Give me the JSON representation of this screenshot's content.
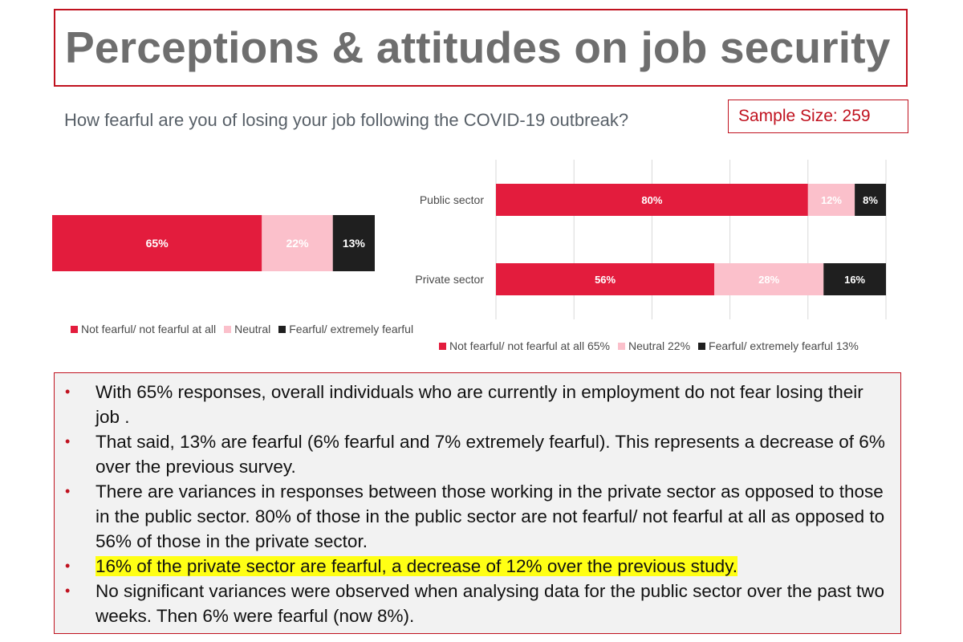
{
  "title": "Perceptions & attitudes on job security",
  "question": "How fearful are you of losing your job following the COVID-19 outbreak?",
  "sample_size": "Sample Size: 259",
  "colors": {
    "not_fearful": "#e31c3d",
    "neutral": "#fbc0cb",
    "fearful": "#1f1f1f",
    "accent": "#c0121f",
    "highlight": "#ffff14"
  },
  "chart_data": [
    {
      "type": "bar",
      "orientation": "horizontal",
      "stacked": true,
      "categories": [
        ""
      ],
      "series": [
        {
          "name": "Not fearful/ not fearful at all",
          "values": [
            65
          ],
          "labels": [
            "65%"
          ]
        },
        {
          "name": "Neutral",
          "values": [
            22
          ],
          "labels": [
            "22%"
          ]
        },
        {
          "name": "Fearful/ extremely fearful",
          "values": [
            13
          ],
          "labels": [
            "13%"
          ]
        }
      ],
      "xlim": [
        0,
        100
      ],
      "grid": false,
      "legend": "bottom"
    },
    {
      "type": "bar",
      "orientation": "horizontal",
      "stacked": true,
      "categories": [
        "Public sector",
        "Private sector"
      ],
      "series": [
        {
          "name": "Not fearful/ not fearful at all 65%",
          "values": [
            80,
            56
          ],
          "labels": [
            "80%",
            "56%"
          ]
        },
        {
          "name": "Neutral 22%",
          "values": [
            12,
            28
          ],
          "labels": [
            "12%",
            "28%"
          ]
        },
        {
          "name": "Fearful/ extremely fearful 13%",
          "values": [
            8,
            16
          ],
          "labels": [
            "8%",
            "16%"
          ]
        }
      ],
      "xlim": [
        0,
        100
      ],
      "grid": true,
      "legend": "bottom"
    }
  ],
  "notes": [
    {
      "text": "With 65% responses, overall individuals who are currently in employment do not fear losing their job .",
      "highlight": false
    },
    {
      "text": "That said, 13% are fearful (6% fearful and 7% extremely fearful). This represents a decrease of 6% over the previous survey.",
      "highlight": false
    },
    {
      "text": "There are variances in responses between those working in the private sector as opposed to those in the public sector. 80% of those in the public sector are not fearful/ not fearful at all as opposed to 56% of those in the private sector.",
      "highlight": false
    },
    {
      "text": "16% of the private sector are fearful, a decrease of 12% over the previous study.",
      "highlight": true
    },
    {
      "text": "No significant variances were observed when analysing data for the public sector over the past two weeks. Then 6% were fearful (now 8%).",
      "highlight": false
    }
  ],
  "bullet_char": "•"
}
